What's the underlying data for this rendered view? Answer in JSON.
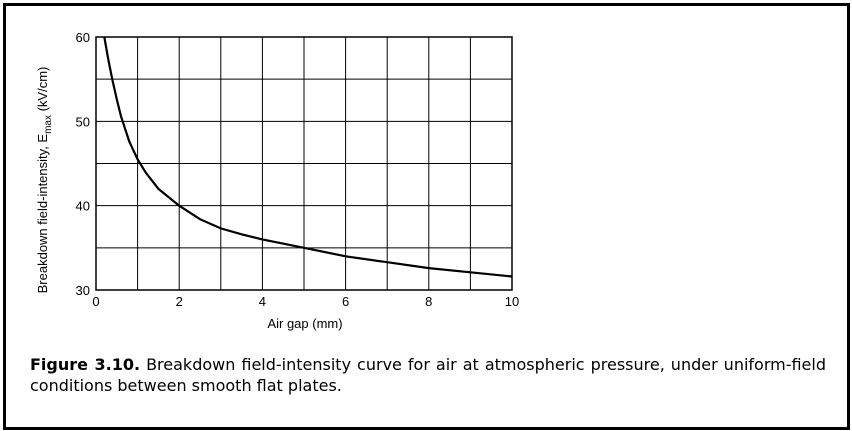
{
  "chart_data": {
    "type": "line",
    "xlabel": "Air gap (mm)",
    "ylabel": "Breakdown field-intensity, E",
    "ylabel_sub": "max",
    "ylabel_unit": " (kV/cm)",
    "xlim": [
      0,
      10
    ],
    "ylim": [
      30,
      60
    ],
    "x_ticks": [
      "0",
      "2",
      "4",
      "6",
      "8",
      "10"
    ],
    "y_ticks": [
      "30",
      "40",
      "50",
      "60"
    ],
    "grid": true,
    "series": [
      {
        "x": [
          0.2,
          0.3,
          0.4,
          0.5,
          0.6,
          0.8,
          1.0,
          1.2,
          1.5,
          2.0,
          2.5,
          3.0,
          3.5,
          4.0,
          5.0,
          6.0,
          7.0,
          8.0,
          9.0,
          10.0
        ],
        "y": [
          60,
          57.2,
          54.8,
          52.6,
          50.6,
          47.6,
          45.5,
          43.9,
          42.0,
          40.0,
          38.4,
          37.3,
          36.6,
          36.0,
          35.0,
          34.0,
          33.3,
          32.6,
          32.1,
          31.6
        ]
      }
    ]
  },
  "caption": {
    "label": "Figure 3.10.",
    "text": " Breakdown field-intensity curve for air at atmospheric pressure, under uniform-field conditions between smooth flat plates."
  },
  "colors": {
    "line": "#000000",
    "grid": "#000000",
    "border": "#000000",
    "background": "#ffffff"
  }
}
